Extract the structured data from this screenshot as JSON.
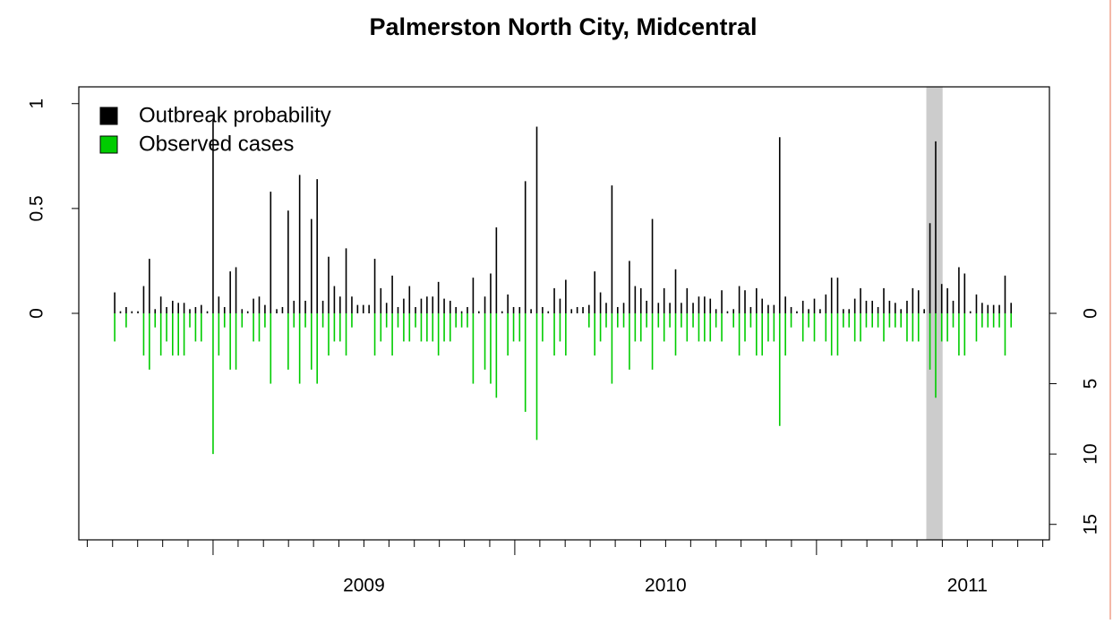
{
  "chart_data": {
    "type": "bar",
    "title": "Palmerston North City, Midcentral",
    "x": [
      2008.674,
      2008.693,
      2008.712,
      2008.731,
      2008.751,
      2008.77,
      2008.789,
      2008.808,
      2008.827,
      2008.846,
      2008.866,
      2008.885,
      2008.904,
      2008.923,
      2008.942,
      2008.961,
      2008.981,
      2009.0,
      2009.019,
      2009.038,
      2009.057,
      2009.076,
      2009.096,
      2009.115,
      2009.134,
      2009.153,
      2009.172,
      2009.191,
      2009.211,
      2009.23,
      2009.249,
      2009.268,
      2009.287,
      2009.306,
      2009.326,
      2009.345,
      2009.364,
      2009.383,
      2009.402,
      2009.421,
      2009.441,
      2009.46,
      2009.479,
      2009.498,
      2009.517,
      2009.536,
      2009.556,
      2009.575,
      2009.594,
      2009.613,
      2009.632,
      2009.651,
      2009.671,
      2009.69,
      2009.709,
      2009.728,
      2009.747,
      2009.766,
      2009.786,
      2009.805,
      2009.824,
      2009.843,
      2009.862,
      2009.881,
      2009.901,
      2009.92,
      2009.939,
      2009.958,
      2009.977,
      2009.996,
      2010.016,
      2010.035,
      2010.054,
      2010.073,
      2010.092,
      2010.111,
      2010.131,
      2010.15,
      2010.169,
      2010.188,
      2010.207,
      2010.226,
      2010.246,
      2010.265,
      2010.284,
      2010.303,
      2010.322,
      2010.341,
      2010.361,
      2010.38,
      2010.399,
      2010.418,
      2010.437,
      2010.456,
      2010.476,
      2010.495,
      2010.514,
      2010.533,
      2010.552,
      2010.571,
      2010.591,
      2010.61,
      2010.629,
      2010.648,
      2010.667,
      2010.686,
      2010.705,
      2010.725,
      2010.744,
      2010.763,
      2010.782,
      2010.801,
      2010.82,
      2010.84,
      2010.859,
      2010.878,
      2010.897,
      2010.916,
      2010.935,
      2010.955,
      2010.974,
      2010.993,
      2011.012,
      2011.031,
      2011.05,
      2011.07,
      2011.089,
      2011.108,
      2011.127,
      2011.146,
      2011.165,
      2011.185,
      2011.204,
      2011.223,
      2011.242,
      2011.261,
      2011.28,
      2011.3,
      2011.319,
      2011.338,
      2011.357,
      2011.376,
      2011.395,
      2011.415,
      2011.434,
      2011.453,
      2011.472,
      2011.491,
      2011.51,
      2011.53,
      2011.549,
      2011.568,
      2011.587,
      2011.606,
      2011.625,
      2011.645
    ],
    "series": [
      {
        "name": "Outbreak probability",
        "color": "#000000",
        "values": [
          0.1,
          0.01,
          0.03,
          0.01,
          0.01,
          0.13,
          0.26,
          0.02,
          0.08,
          0.03,
          0.06,
          0.05,
          0.05,
          0.02,
          0.03,
          0.04,
          0.01,
          0.92,
          0.08,
          0.03,
          0.2,
          0.22,
          0.02,
          0.01,
          0.07,
          0.08,
          0.04,
          0.58,
          0.02,
          0.03,
          0.49,
          0.06,
          0.66,
          0.06,
          0.45,
          0.64,
          0.06,
          0.27,
          0.13,
          0.08,
          0.31,
          0.08,
          0.04,
          0.04,
          0.04,
          0.26,
          0.12,
          0.05,
          0.18,
          0.03,
          0.07,
          0.13,
          0.03,
          0.07,
          0.08,
          0.08,
          0.15,
          0.07,
          0.06,
          0.03,
          0.01,
          0.03,
          0.17,
          0.01,
          0.08,
          0.19,
          0.41,
          0.01,
          0.09,
          0.03,
          0.03,
          0.63,
          0.02,
          0.89,
          0.03,
          0.01,
          0.12,
          0.07,
          0.16,
          0.02,
          0.03,
          0.03,
          0.04,
          0.2,
          0.1,
          0.05,
          0.61,
          0.03,
          0.05,
          0.25,
          0.13,
          0.12,
          0.06,
          0.45,
          0.05,
          0.12,
          0.05,
          0.21,
          0.05,
          0.12,
          0.05,
          0.08,
          0.08,
          0.07,
          0.02,
          0.11,
          0.01,
          0.02,
          0.13,
          0.11,
          0.03,
          0.12,
          0.07,
          0.04,
          0.04,
          0.84,
          0.08,
          0.03,
          0.01,
          0.06,
          0.02,
          0.07,
          0.02,
          0.09,
          0.17,
          0.17,
          0.02,
          0.02,
          0.07,
          0.12,
          0.06,
          0.06,
          0.03,
          0.12,
          0.06,
          0.05,
          0.02,
          0.06,
          0.12,
          0.11,
          0.02,
          0.43,
          0.82,
          0.14,
          0.12,
          0.06,
          0.22,
          0.19,
          0.01,
          0.09,
          0.05,
          0.04,
          0.04,
          0.04,
          0.18,
          0.05
        ]
      },
      {
        "name": "Observed cases",
        "color": "#00cc00",
        "axis": "y2",
        "values": [
          2,
          0,
          1,
          0,
          0,
          3,
          4,
          1,
          3,
          2,
          3,
          3,
          3,
          1,
          2,
          2,
          0,
          10,
          3,
          1,
          4,
          4,
          1,
          0,
          2,
          2,
          1,
          5,
          0,
          0,
          4,
          1,
          5,
          1,
          4,
          5,
          1,
          3,
          2,
          2,
          3,
          1,
          0,
          0,
          0,
          3,
          2,
          1,
          3,
          1,
          2,
          2,
          1,
          2,
          2,
          2,
          3,
          2,
          2,
          1,
          1,
          1,
          5,
          0,
          4,
          5,
          6,
          0,
          3,
          2,
          2,
          7,
          0,
          9,
          2,
          0,
          3,
          2,
          3,
          0,
          0,
          0,
          1,
          3,
          2,
          1,
          5,
          1,
          1,
          4,
          2,
          2,
          1,
          4,
          1,
          2,
          1,
          3,
          1,
          2,
          1,
          2,
          2,
          2,
          1,
          2,
          0,
          1,
          3,
          2,
          1,
          3,
          3,
          2,
          2,
          8,
          3,
          1,
          0,
          2,
          1,
          2,
          0,
          2,
          3,
          3,
          1,
          1,
          2,
          2,
          1,
          1,
          1,
          2,
          1,
          1,
          1,
          2,
          2,
          2,
          0,
          4,
          6,
          2,
          2,
          1,
          3,
          3,
          0,
          2,
          1,
          1,
          1,
          1,
          3,
          1
        ]
      }
    ],
    "xlim": [
      2008.555,
      2011.772
    ],
    "xticks": [
      {
        "value": 2009.5,
        "label": "2009"
      },
      {
        "value": 2010.5,
        "label": "2010"
      },
      {
        "value": 2011.5,
        "label": "2011"
      }
    ],
    "x_major_ticks": [
      2009,
      2010,
      2011
    ],
    "x_minor_ticks": [
      2008.583,
      2008.667,
      2008.75,
      2008.833,
      2008.917,
      2009.083,
      2009.167,
      2009.25,
      2009.333,
      2009.417,
      2009.5,
      2009.583,
      2009.667,
      2009.75,
      2009.833,
      2009.917,
      2010.083,
      2010.167,
      2010.25,
      2010.333,
      2010.417,
      2010.5,
      2010.583,
      2010.667,
      2010.75,
      2010.833,
      2010.917,
      2011.083,
      2011.167,
      2011.25,
      2011.333,
      2011.417,
      2011.5,
      2011.583,
      2011.667,
      2011.75
    ],
    "ylim": [
      -1.08,
      1.08
    ],
    "yticks": [
      0,
      0.5,
      1
    ],
    "y2lim": [
      16.1,
      -16.1
    ],
    "y2ticks": [
      0,
      5,
      10,
      15
    ],
    "highlight": [
      2011.364,
      2011.418
    ],
    "highlight_color": "#cccccc",
    "legend": "topleft",
    "grid": false
  }
}
